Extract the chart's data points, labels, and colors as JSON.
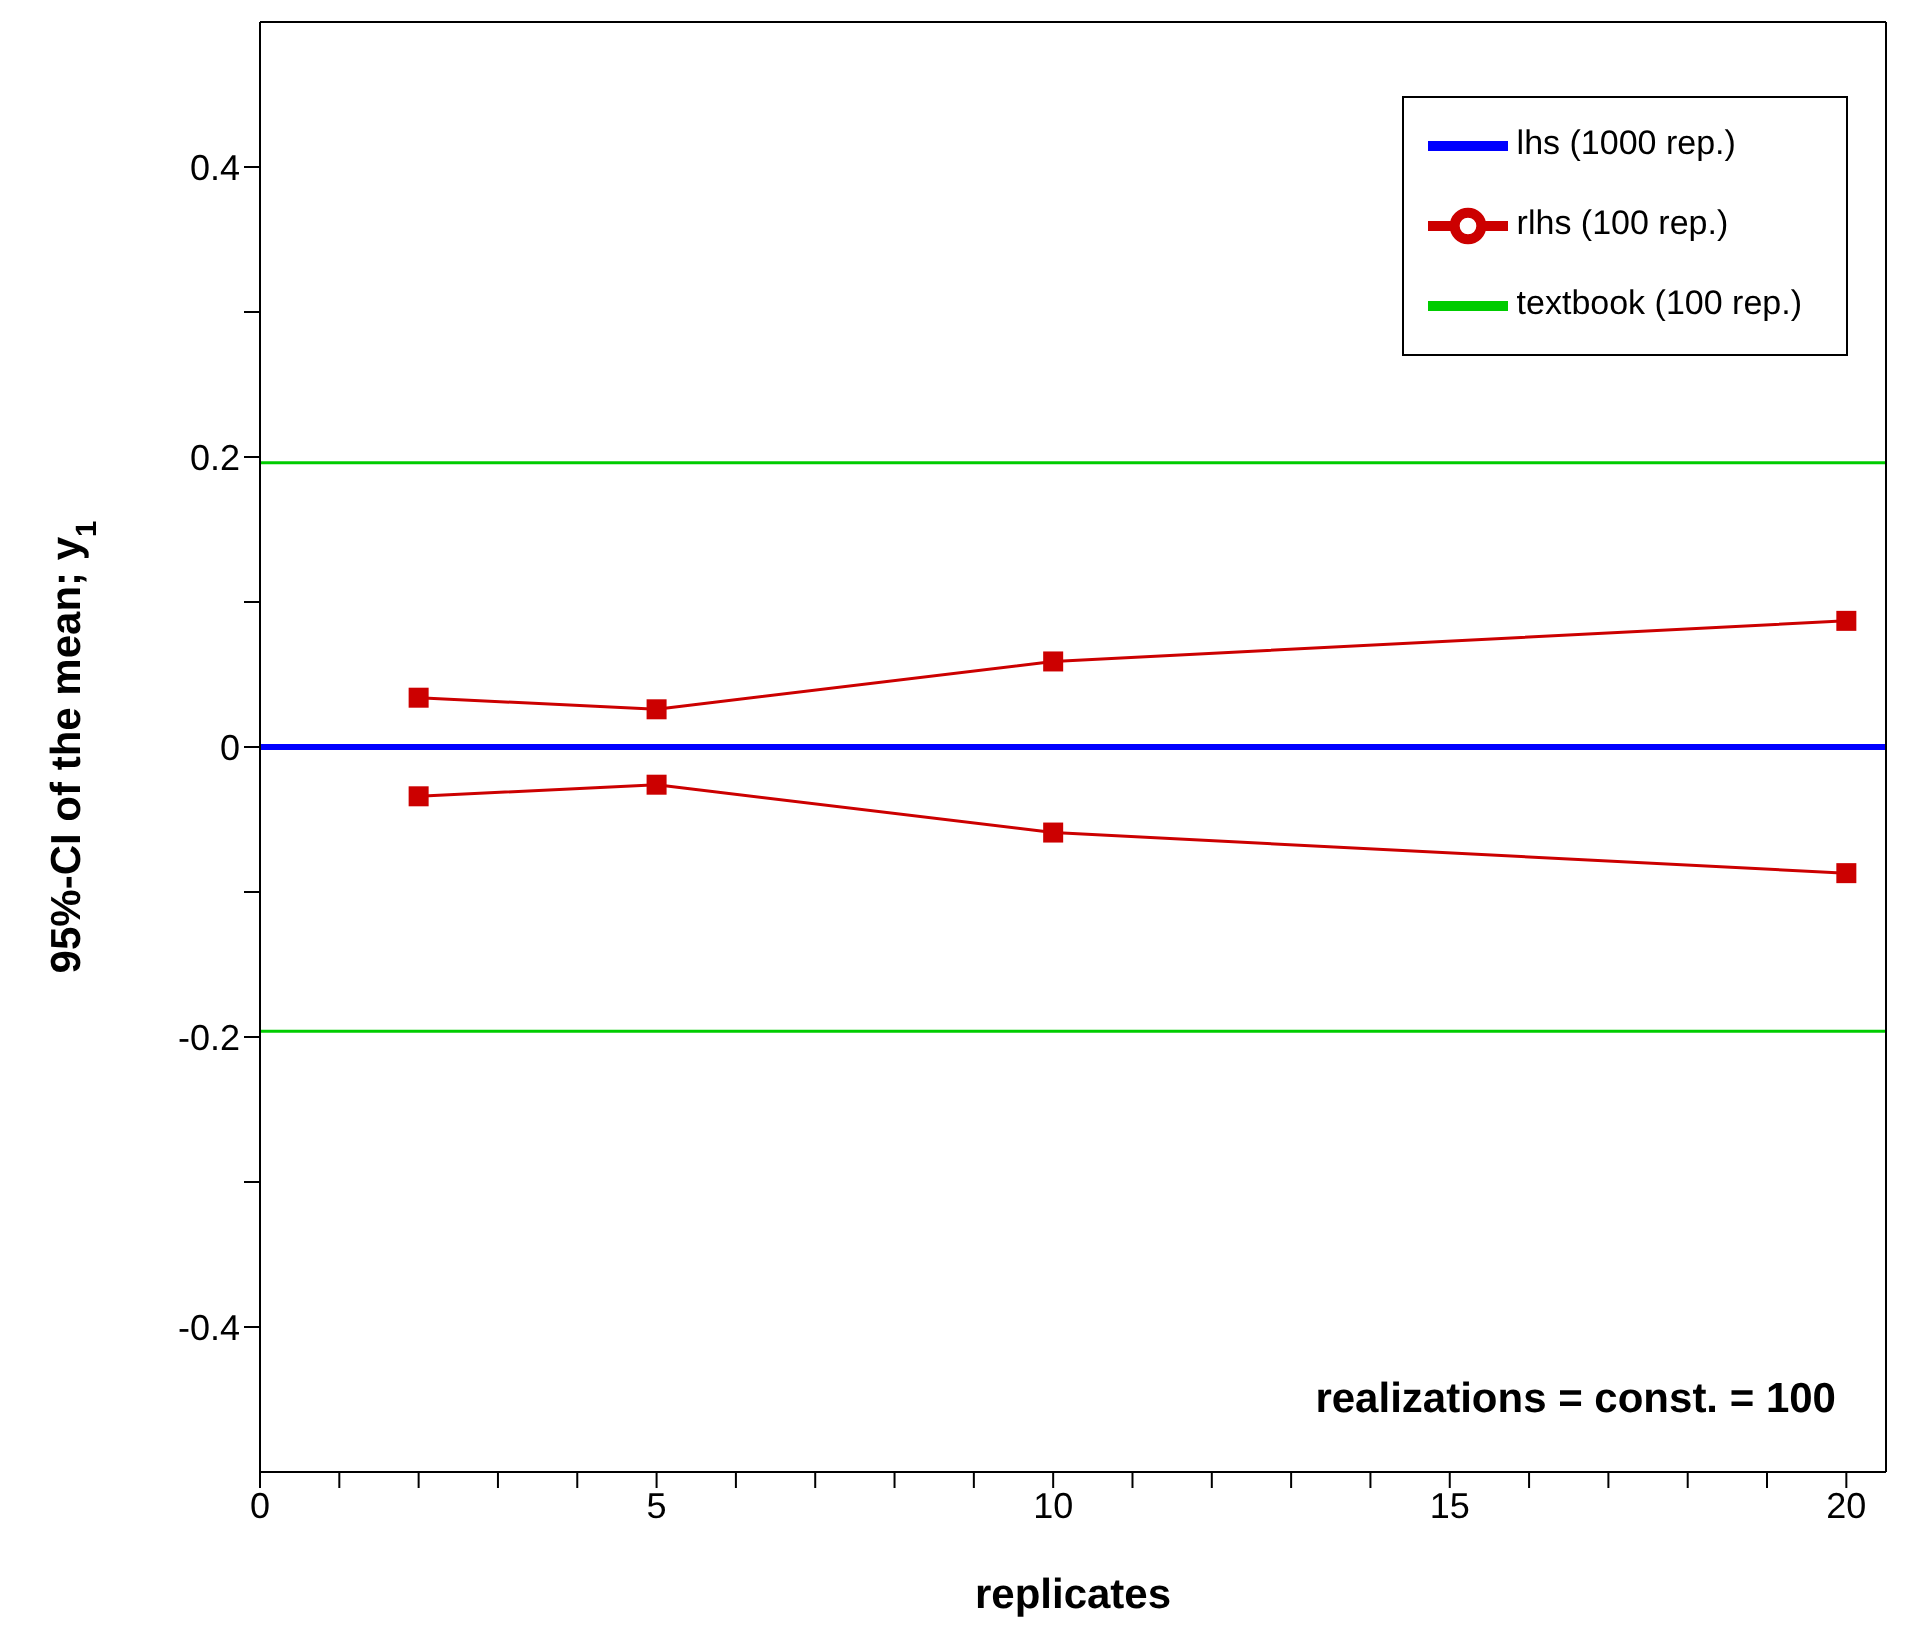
{
  "chart_data": {
    "type": "line",
    "xlabel": "replicates",
    "ylabel": "95%-CI of the mean; y$_{1}$",
    "xlim": [
      0,
      20.5
    ],
    "ylim": [
      -0.5,
      0.5
    ],
    "xticks": [
      0,
      {
        "value": 1,
        "label": null
      },
      {
        "value": 2,
        "label": null
      },
      {
        "value": 3,
        "label": null
      },
      {
        "value": 4,
        "label": null
      },
      5,
      {
        "value": 6,
        "label": null
      },
      {
        "value": 7,
        "label": null
      },
      {
        "value": 8,
        "label": null
      },
      {
        "value": 9,
        "label": null
      },
      10,
      {
        "value": 11,
        "label": null
      },
      {
        "value": 12,
        "label": null
      },
      {
        "value": 13,
        "label": null
      },
      {
        "value": 14,
        "label": null
      },
      15,
      {
        "value": 16,
        "label": null
      },
      {
        "value": 17,
        "label": null
      },
      {
        "value": 18,
        "label": null
      },
      {
        "value": 19,
        "label": null
      },
      20
    ],
    "yticks": [
      -0.4,
      {
        "value": -0.3,
        "label": null
      },
      -0.2,
      {
        "value": -0.1,
        "label": null
      },
      0,
      {
        "value": 0.1,
        "label": null
      },
      0.2,
      {
        "value": 0.3,
        "label": null
      },
      0.4
    ],
    "grid": false,
    "legend": "top right",
    "annotations": [
      "realizations = const. = 100"
    ],
    "series": [
      {
        "name": "lhs (1000 rep.)",
        "color": "#0000ff",
        "x": [
          0,
          20.5
        ],
        "values": [
          0,
          0
        ],
        "marker": "none"
      },
      {
        "name": "rlhs (100 rep.)",
        "color": "#cc0000",
        "x": [
          2,
          5,
          10,
          20
        ],
        "values": [
          0.034,
          0.026,
          0.059,
          0.087
        ],
        "marker": "square"
      },
      {
        "color": "#cc0000",
        "x": [
          2,
          5,
          10,
          20
        ],
        "values": [
          -0.034,
          -0.026,
          -0.059,
          -0.087
        ],
        "marker": "square"
      },
      {
        "name": "textbook (100 rep.)",
        "color": "#00cc00",
        "x": [
          0,
          20.5
        ],
        "values": [
          0.196,
          0.196
        ],
        "marker": "none"
      },
      {
        "color": "#00cc00",
        "x": [
          0,
          20.5
        ],
        "values": [
          -0.196,
          -0.196
        ],
        "marker": "none"
      }
    ]
  }
}
